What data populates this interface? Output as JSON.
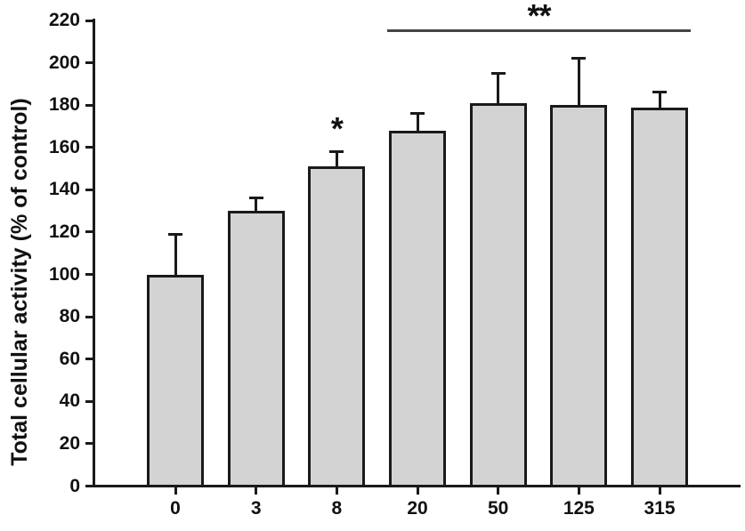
{
  "figure": {
    "background_color": "#ffffff",
    "text_color": "#111111",
    "axis_color": "#1a1a1a"
  },
  "chart_data": {
    "type": "bar",
    "title": "",
    "xlabel": "",
    "ylabel": "Total cellular activity (% of control)",
    "categories": [
      "0",
      "3",
      "8",
      "20",
      "50",
      "125",
      "315"
    ],
    "values": [
      100,
      130,
      151,
      168,
      181,
      180,
      179
    ],
    "errors_upper": [
      19,
      6,
      7,
      8,
      14,
      22,
      7
    ],
    "ylim": [
      0,
      220
    ],
    "ytick_step": 20,
    "ytick_labels": [
      "0",
      "20",
      "40",
      "60",
      "80",
      "100",
      "120",
      "140",
      "160",
      "180",
      "200",
      "220"
    ],
    "grid": false,
    "legend": null,
    "bar_fill_color": "#d3d3d3",
    "bar_border_color": "#1a1a1a",
    "error_bar_color": "#1a1a1a",
    "significance_line_color": "#444444",
    "annotations": [
      {
        "type": "asterisk",
        "label": "*",
        "category": "8"
      },
      {
        "type": "line-bracket",
        "label": "**",
        "from_category": "20",
        "to_category": "315",
        "y_value": 215
      }
    ]
  }
}
